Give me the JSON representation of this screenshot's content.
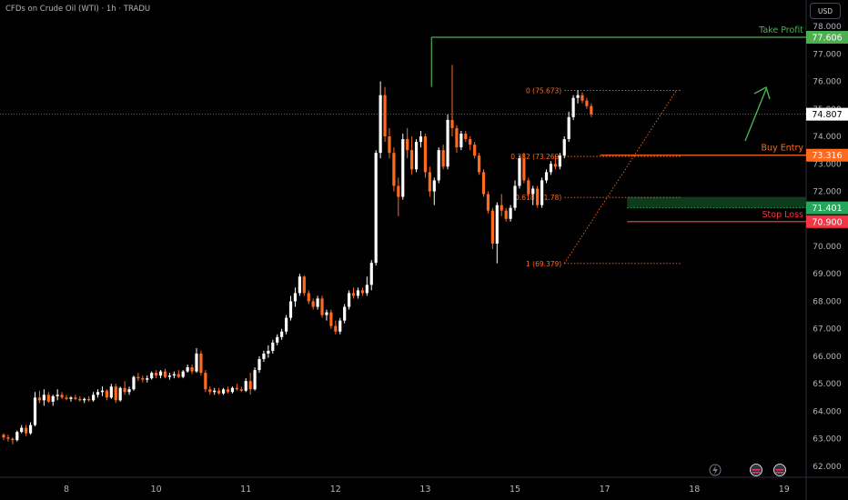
{
  "header": {
    "title": "CFDs on Crude Oil (WTI) · 1h · TRADU",
    "currency": "USD"
  },
  "colors": {
    "up": "#ffffff",
    "down": "#ff6a1f",
    "take_profit": "#4caf50",
    "buy": "#ff6a1f",
    "stop": "#f23645",
    "fib": "#ff6a1f",
    "arrow": "#4caf50",
    "zone": "#0d3b1c"
  },
  "icons": [
    "lightning-icon",
    "flag-icon",
    "flag-icon"
  ],
  "chart_data": {
    "type": "candlestick",
    "y_range": [
      61.6,
      78.3
    ],
    "y_ticks": [
      62,
      63,
      64,
      65,
      66,
      67,
      68,
      69,
      70,
      71,
      72,
      73,
      74,
      75,
      76,
      77,
      78
    ],
    "x_labels": [
      {
        "label": "8",
        "index": 14
      },
      {
        "label": "10",
        "index": 34
      },
      {
        "label": "11",
        "index": 54
      },
      {
        "label": "12",
        "index": 74
      },
      {
        "label": "13",
        "index": 94
      },
      {
        "label": "15",
        "index": 114
      },
      {
        "label": "17",
        "index": 134
      },
      {
        "label": "18",
        "index": 154
      },
      {
        "label": "19",
        "index": 174
      }
    ],
    "last_price": {
      "label": "74.807",
      "value": 74.807
    },
    "levels": [
      {
        "name": "Take Profit",
        "label": "Take Profit",
        "price_label": "77.606",
        "value": 77.606,
        "color": "#4caf50",
        "start_index": 96
      },
      {
        "name": "Buy Entry",
        "label": "Buy Entry",
        "price_label": "73.316",
        "value": 73.316,
        "color": "#ff6a1f",
        "start_index": 133
      },
      {
        "name": "Zone",
        "label": "",
        "price_label": "71.401",
        "value": 71.401,
        "color": "#26a65b",
        "start_index": 139
      },
      {
        "name": "Stop Loss",
        "label": "Stop Loss",
        "price_label": "70.900",
        "value": 70.9,
        "color": "#f23645",
        "start_index": 139
      }
    ],
    "fib": [
      {
        "label": "0 (75.673)",
        "value": 75.673
      },
      {
        "label": "0.382 (73.269)",
        "value": 73.269
      },
      {
        "label": "0.618 (71.78)",
        "value": 71.78
      },
      {
        "label": "1 (69.379)",
        "value": 69.379
      }
    ],
    "fib_start_index": 125,
    "fib_end_index": 151,
    "ohlc": [
      [
        63.15,
        63.2,
        62.95,
        63.05
      ],
      [
        63.05,
        63.15,
        62.9,
        63.0
      ],
      [
        63.0,
        63.05,
        62.8,
        62.95
      ],
      [
        62.95,
        63.3,
        62.9,
        63.25
      ],
      [
        63.25,
        63.5,
        63.2,
        63.4
      ],
      [
        63.4,
        63.5,
        63.1,
        63.2
      ],
      [
        63.2,
        63.6,
        63.15,
        63.5
      ],
      [
        63.5,
        64.7,
        63.45,
        64.5
      ],
      [
        64.5,
        64.75,
        64.3,
        64.4
      ],
      [
        64.4,
        64.8,
        64.2,
        64.6
      ],
      [
        64.6,
        64.7,
        64.3,
        64.35
      ],
      [
        64.35,
        64.6,
        64.2,
        64.55
      ],
      [
        64.55,
        64.8,
        64.4,
        64.6
      ],
      [
        64.6,
        64.7,
        64.45,
        64.5
      ],
      [
        64.5,
        64.6,
        64.4,
        64.45
      ],
      [
        64.45,
        64.55,
        64.35,
        64.5
      ],
      [
        64.5,
        64.6,
        64.4,
        64.45
      ],
      [
        64.45,
        64.55,
        64.35,
        64.4
      ],
      [
        64.4,
        64.5,
        64.3,
        64.45
      ],
      [
        64.45,
        64.55,
        64.35,
        64.4
      ],
      [
        64.4,
        64.7,
        64.35,
        64.6
      ],
      [
        64.6,
        64.8,
        64.5,
        64.7
      ],
      [
        64.7,
        64.9,
        64.55,
        64.75
      ],
      [
        64.75,
        64.8,
        64.4,
        64.5
      ],
      [
        64.5,
        65.0,
        64.45,
        64.9
      ],
      [
        64.9,
        65.0,
        64.3,
        64.4
      ],
      [
        64.4,
        64.9,
        64.35,
        64.85
      ],
      [
        64.85,
        65.1,
        64.6,
        64.7
      ],
      [
        64.7,
        64.9,
        64.6,
        64.8
      ],
      [
        64.8,
        65.3,
        64.75,
        65.25
      ],
      [
        65.25,
        65.4,
        65.1,
        65.2
      ],
      [
        65.2,
        65.3,
        65.05,
        65.15
      ],
      [
        65.15,
        65.3,
        65.05,
        65.2
      ],
      [
        65.2,
        65.45,
        65.15,
        65.4
      ],
      [
        65.4,
        65.5,
        65.2,
        65.3
      ],
      [
        65.3,
        65.5,
        65.2,
        65.45
      ],
      [
        65.45,
        65.55,
        65.2,
        65.25
      ],
      [
        65.25,
        65.4,
        65.15,
        65.3
      ],
      [
        65.3,
        65.45,
        65.2,
        65.35
      ],
      [
        65.35,
        65.5,
        65.2,
        65.25
      ],
      [
        65.25,
        65.5,
        65.2,
        65.45
      ],
      [
        65.45,
        65.7,
        65.4,
        65.6
      ],
      [
        65.6,
        65.7,
        65.35,
        65.45
      ],
      [
        65.45,
        66.3,
        65.4,
        66.1
      ],
      [
        66.1,
        66.2,
        65.3,
        65.4
      ],
      [
        65.4,
        65.5,
        64.7,
        64.8
      ],
      [
        64.8,
        64.9,
        64.6,
        64.7
      ],
      [
        64.7,
        64.85,
        64.6,
        64.75
      ],
      [
        64.75,
        64.85,
        64.6,
        64.65
      ],
      [
        64.65,
        64.85,
        64.6,
        64.8
      ],
      [
        64.8,
        64.9,
        64.65,
        64.7
      ],
      [
        64.7,
        64.9,
        64.65,
        64.85
      ],
      [
        64.85,
        65.0,
        64.75,
        64.8
      ],
      [
        64.8,
        64.9,
        64.7,
        64.75
      ],
      [
        64.75,
        65.2,
        64.7,
        65.1
      ],
      [
        65.1,
        65.4,
        64.6,
        64.8
      ],
      [
        64.8,
        65.6,
        64.75,
        65.5
      ],
      [
        65.5,
        66.0,
        65.4,
        65.9
      ],
      [
        65.9,
        66.2,
        65.8,
        66.1
      ],
      [
        66.1,
        66.4,
        65.95,
        66.2
      ],
      [
        66.2,
        66.6,
        66.1,
        66.5
      ],
      [
        66.5,
        66.8,
        66.4,
        66.7
      ],
      [
        66.7,
        67.0,
        66.6,
        66.9
      ],
      [
        66.9,
        67.5,
        66.8,
        67.4
      ],
      [
        67.4,
        68.2,
        67.3,
        68.0
      ],
      [
        68.0,
        68.5,
        67.8,
        68.3
      ],
      [
        68.3,
        69.0,
        68.2,
        68.9
      ],
      [
        68.9,
        68.95,
        68.2,
        68.3
      ],
      [
        68.3,
        68.4,
        67.9,
        68.0
      ],
      [
        68.0,
        68.1,
        67.7,
        67.8
      ],
      [
        67.8,
        68.2,
        67.7,
        68.1
      ],
      [
        68.1,
        68.2,
        67.4,
        67.5
      ],
      [
        67.5,
        67.7,
        67.3,
        67.6
      ],
      [
        67.6,
        67.7,
        67.0,
        67.1
      ],
      [
        67.1,
        67.3,
        66.8,
        66.9
      ],
      [
        66.9,
        67.4,
        66.8,
        67.3
      ],
      [
        67.3,
        67.9,
        67.2,
        67.8
      ],
      [
        67.8,
        68.4,
        67.7,
        68.3
      ],
      [
        68.3,
        68.5,
        68.1,
        68.2
      ],
      [
        68.2,
        68.5,
        68.1,
        68.4
      ],
      [
        68.4,
        68.5,
        68.2,
        68.3
      ],
      [
        68.3,
        68.9,
        68.2,
        68.6
      ],
      [
        68.6,
        69.5,
        68.4,
        69.4
      ],
      [
        69.4,
        73.5,
        69.3,
        73.4
      ],
      [
        73.4,
        76.0,
        73.2,
        75.5
      ],
      [
        75.5,
        75.8,
        73.8,
        74.0
      ],
      [
        74.0,
        74.3,
        73.2,
        73.4
      ],
      [
        73.4,
        73.6,
        72.0,
        72.2
      ],
      [
        72.2,
        72.5,
        71.1,
        71.8
      ],
      [
        71.8,
        74.1,
        71.7,
        73.9
      ],
      [
        73.9,
        74.3,
        73.2,
        73.5
      ],
      [
        73.5,
        74.0,
        72.6,
        72.8
      ],
      [
        72.8,
        73.9,
        72.7,
        73.8
      ],
      [
        73.8,
        74.2,
        73.6,
        74.0
      ],
      [
        74.0,
        74.1,
        72.5,
        72.7
      ],
      [
        72.7,
        72.9,
        71.8,
        72.0
      ],
      [
        72.0,
        72.5,
        71.5,
        72.4
      ],
      [
        72.4,
        73.6,
        72.3,
        73.5
      ],
      [
        73.5,
        73.7,
        72.8,
        72.9
      ],
      [
        72.9,
        74.8,
        72.8,
        74.6
      ],
      [
        74.6,
        76.6,
        74.0,
        74.3
      ],
      [
        74.3,
        74.4,
        73.4,
        73.6
      ],
      [
        73.6,
        74.2,
        73.5,
        74.1
      ],
      [
        74.1,
        74.2,
        73.8,
        73.9
      ],
      [
        73.9,
        74.0,
        73.5,
        73.7
      ],
      [
        73.7,
        73.8,
        73.2,
        73.3
      ],
      [
        73.3,
        73.4,
        72.6,
        72.7
      ],
      [
        72.7,
        72.8,
        71.8,
        71.9
      ],
      [
        71.9,
        72.0,
        71.2,
        71.3
      ],
      [
        71.3,
        71.4,
        69.9,
        70.1
      ],
      [
        70.1,
        71.6,
        69.379,
        71.5
      ],
      [
        71.5,
        71.9,
        71.1,
        71.3
      ],
      [
        71.3,
        71.4,
        70.9,
        71.0
      ],
      [
        71.0,
        71.5,
        70.9,
        71.4
      ],
      [
        71.4,
        72.4,
        71.3,
        72.2
      ],
      [
        72.2,
        73.3,
        72.1,
        73.2
      ],
      [
        73.2,
        73.4,
        72.3,
        72.4
      ],
      [
        72.4,
        72.5,
        71.8,
        71.9
      ],
      [
        71.9,
        72.2,
        71.5,
        72.1
      ],
      [
        72.1,
        72.2,
        71.4,
        71.5
      ],
      [
        71.5,
        72.5,
        71.4,
        72.4
      ],
      [
        72.4,
        72.8,
        72.3,
        72.7
      ],
      [
        72.7,
        73.1,
        72.6,
        73.0
      ],
      [
        73.0,
        73.3,
        72.8,
        72.9
      ],
      [
        72.9,
        73.4,
        72.8,
        73.3
      ],
      [
        73.3,
        74.0,
        73.2,
        73.9
      ],
      [
        73.9,
        74.9,
        73.8,
        74.7
      ],
      [
        74.7,
        75.5,
        74.6,
        75.4
      ],
      [
        75.4,
        75.673,
        75.2,
        75.5
      ],
      [
        75.5,
        75.6,
        75.2,
        75.3
      ],
      [
        75.3,
        75.4,
        75.0,
        75.1
      ],
      [
        75.1,
        75.2,
        74.7,
        74.807
      ]
    ]
  }
}
